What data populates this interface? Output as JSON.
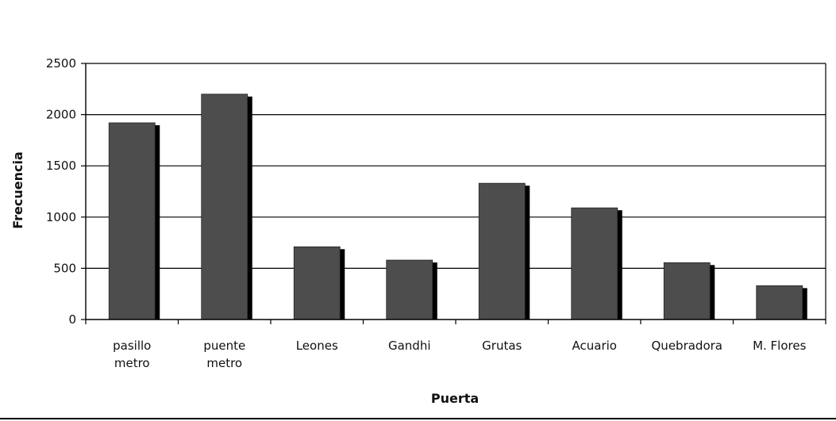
{
  "chart_data": {
    "type": "bar",
    "title": "",
    "xlabel": "Puerta",
    "ylabel": "Frecuencia",
    "categories": [
      [
        "pasillo",
        "metro"
      ],
      [
        "puente",
        "metro"
      ],
      [
        "Leones"
      ],
      [
        "Gandhi"
      ],
      [
        "Grutas"
      ],
      [
        "Acuario"
      ],
      [
        "Quebradora"
      ],
      [
        "M. Flores"
      ]
    ],
    "values": [
      1920,
      2200,
      710,
      580,
      1330,
      1090,
      555,
      330
    ],
    "ylim": [
      0,
      2500
    ],
    "yticks": [
      "0",
      "500",
      "1000",
      "1500",
      "2000",
      "2500"
    ],
    "grid": true,
    "legend": "none",
    "colors": {
      "bar": "#4d4d4d",
      "shadow": "#000000",
      "grid": "#000000"
    }
  }
}
